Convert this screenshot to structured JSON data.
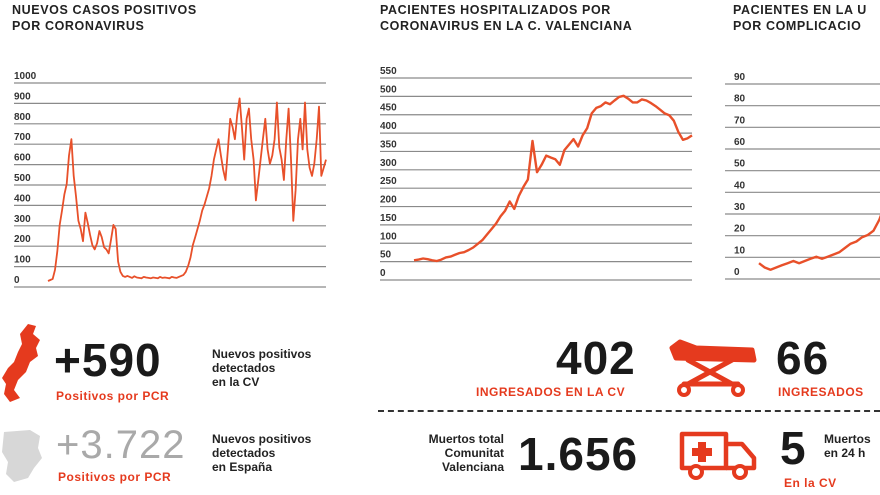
{
  "charts": {
    "left": {
      "title_line1": "NUEVOS CASOS POSITIVOS",
      "title_line2": "POR CORONAVIRUS"
    },
    "middle": {
      "title_line1": "PACIENTES HOSPITALIZADOS POR",
      "title_line2": "CORONAVIRUS EN LA C. VALENCIANA"
    },
    "right": {
      "title_line1": "PACIENTES EN LA U",
      "title_line2": "POR COMPLICACIO"
    }
  },
  "chart_data": [
    {
      "type": "line",
      "title": "NUEVOS CASOS POSITIVOS POR CORONAVIRUS",
      "ylim": [
        0,
        1000
      ],
      "yticks": [
        0,
        100,
        200,
        300,
        400,
        500,
        600,
        700,
        800,
        900,
        1000
      ],
      "color": "#e8502a",
      "series": [
        {
          "values": [
            5,
            10,
            15,
            60,
            150,
            280,
            350,
            430,
            480,
            620,
            700,
            520,
            420,
            300,
            260,
            200,
            340,
            290,
            230,
            180,
            160,
            190,
            250,
            220,
            170,
            160,
            140,
            210,
            280,
            260,
            100,
            50,
            30,
            25,
            30,
            25,
            20,
            28,
            22,
            20,
            18,
            25,
            22,
            20,
            18,
            22,
            20,
            18,
            25,
            20,
            22,
            20,
            18,
            25,
            22,
            20,
            25,
            30,
            35,
            50,
            80,
            120,
            180,
            220,
            260,
            300,
            350,
            380,
            420,
            460,
            520,
            600,
            650,
            700,
            620,
            550,
            500,
            650,
            800,
            760,
            700,
            820,
            900,
            760,
            600,
            800,
            850,
            700,
            600,
            400,
            500,
            600,
            700,
            800,
            650,
            580,
            620,
            700,
            880,
            660,
            600,
            500,
            700,
            850,
            600,
            300,
            450,
            700,
            800,
            650,
            880,
            650,
            560,
            520,
            580,
            700,
            860,
            520,
            560,
            600
          ]
        }
      ]
    },
    {
      "type": "line",
      "title": "PACIENTES HOSPITALIZADOS POR CORONAVIRUS EN LA C. VALENCIANA",
      "ylim": [
        0,
        550
      ],
      "yticks": [
        0,
        50,
        100,
        150,
        200,
        250,
        300,
        350,
        400,
        450,
        500,
        550
      ],
      "color": "#e8502a",
      "series": [
        {
          "values": [
            40,
            42,
            45,
            43,
            40,
            38,
            42,
            48,
            50,
            55,
            60,
            62,
            68,
            75,
            85,
            95,
            110,
            125,
            140,
            160,
            175,
            200,
            180,
            215,
            240,
            260,
            365,
            280,
            300,
            325,
            320,
            315,
            300,
            340,
            355,
            370,
            350,
            380,
            400,
            440,
            455,
            460,
            470,
            465,
            475,
            485,
            488,
            480,
            470,
            470,
            478,
            475,
            468,
            460,
            450,
            440,
            435,
            420,
            390,
            368,
            372,
            380
          ]
        }
      ]
    },
    {
      "type": "line",
      "title": "PACIENTES EN LA U POR COMPLICACIO",
      "ylim": [
        0,
        90
      ],
      "yticks": [
        0,
        10,
        20,
        30,
        40,
        50,
        60,
        70,
        80,
        90
      ],
      "color": "#e8502a",
      "series": [
        {
          "values": [
            5,
            3,
            2,
            3,
            4,
            5,
            6,
            5,
            6,
            7,
            8,
            7,
            8,
            9,
            10,
            12,
            14,
            15,
            17,
            18,
            20,
            25,
            32
          ]
        }
      ]
    }
  ],
  "stats": {
    "cv_new_value": "+590",
    "cv_new_sub": "Positivos por PCR",
    "cv_new_desc": [
      "Nuevos positivos",
      "detectados",
      "en la CV"
    ],
    "es_new_value": "+3.722",
    "es_new_sub": "Positivos por PCR",
    "es_new_desc": [
      "Nuevos positivos",
      "detectados",
      "en España"
    ],
    "admitted_value": "402",
    "admitted_sub": "INGRESADOS EN LA CV",
    "uci_value": "66",
    "uci_sub": "INGRESADOS",
    "deaths_desc": [
      "Muertos total",
      "Comunitat",
      "Valenciana"
    ],
    "deaths_value": "1.656",
    "deaths24_value": "5",
    "deaths24_desc": [
      "Muertos",
      "en 24 h"
    ],
    "deaths24_sub": "En la CV"
  },
  "colors": {
    "accent": "#e53a1e",
    "line": "#e8502a",
    "grid": "#8a8a8a",
    "gray_text": "#a9a9a9"
  }
}
